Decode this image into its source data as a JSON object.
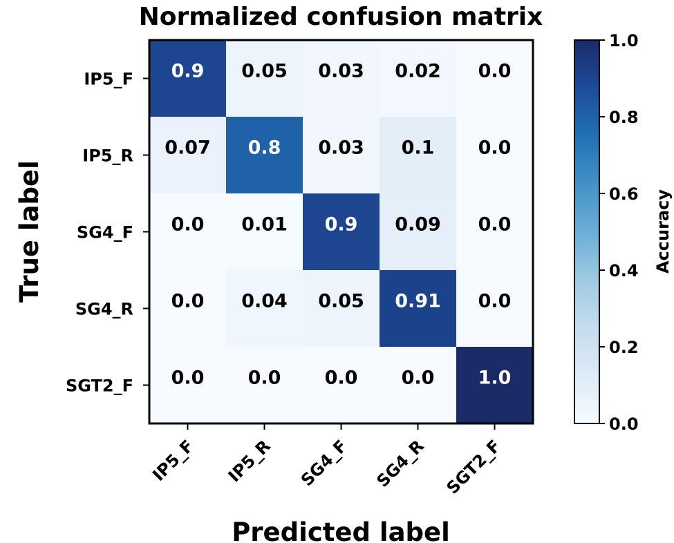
{
  "chart_data": {
    "type": "heatmap",
    "title": "Normalized confusion matrix",
    "xlabel": "Predicted label",
    "ylabel": "True label",
    "x_categories": [
      "IP5_F",
      "IP5_R",
      "SG4_F",
      "SG4_R",
      "SGT2_F"
    ],
    "y_categories": [
      "IP5_F",
      "IP5_R",
      "SG4_F",
      "SG4_R",
      "SGT2_F"
    ],
    "values": [
      [
        0.9,
        0.05,
        0.03,
        0.02,
        0.0
      ],
      [
        0.07,
        0.8,
        0.03,
        0.1,
        0.0
      ],
      [
        0.0,
        0.01,
        0.9,
        0.09,
        0.0
      ],
      [
        0.0,
        0.04,
        0.05,
        0.91,
        0.0
      ],
      [
        0.0,
        0.0,
        0.0,
        0.0,
        1.0
      ]
    ],
    "cell_labels": [
      [
        "0.9",
        "0.05",
        "0.03",
        "0.02",
        "0.0"
      ],
      [
        "0.07",
        "0.8",
        "0.03",
        "0.1",
        "0.0"
      ],
      [
        "0.0",
        "0.01",
        "0.9",
        "0.09",
        "0.0"
      ],
      [
        "0.0",
        "0.04",
        "0.05",
        "0.91",
        "0.0"
      ],
      [
        "0.0",
        "0.0",
        "0.0",
        "0.0",
        "1.0"
      ]
    ],
    "colormap": "Blues",
    "colorbar": {
      "label": "Accuracy",
      "range": [
        0.0,
        1.0
      ],
      "ticks": [
        0.0,
        0.2,
        0.4,
        0.6,
        0.8,
        1.0
      ],
      "tick_labels": [
        "0.0",
        "0.2",
        "0.4",
        "0.6",
        "0.8",
        "1.0"
      ]
    }
  }
}
